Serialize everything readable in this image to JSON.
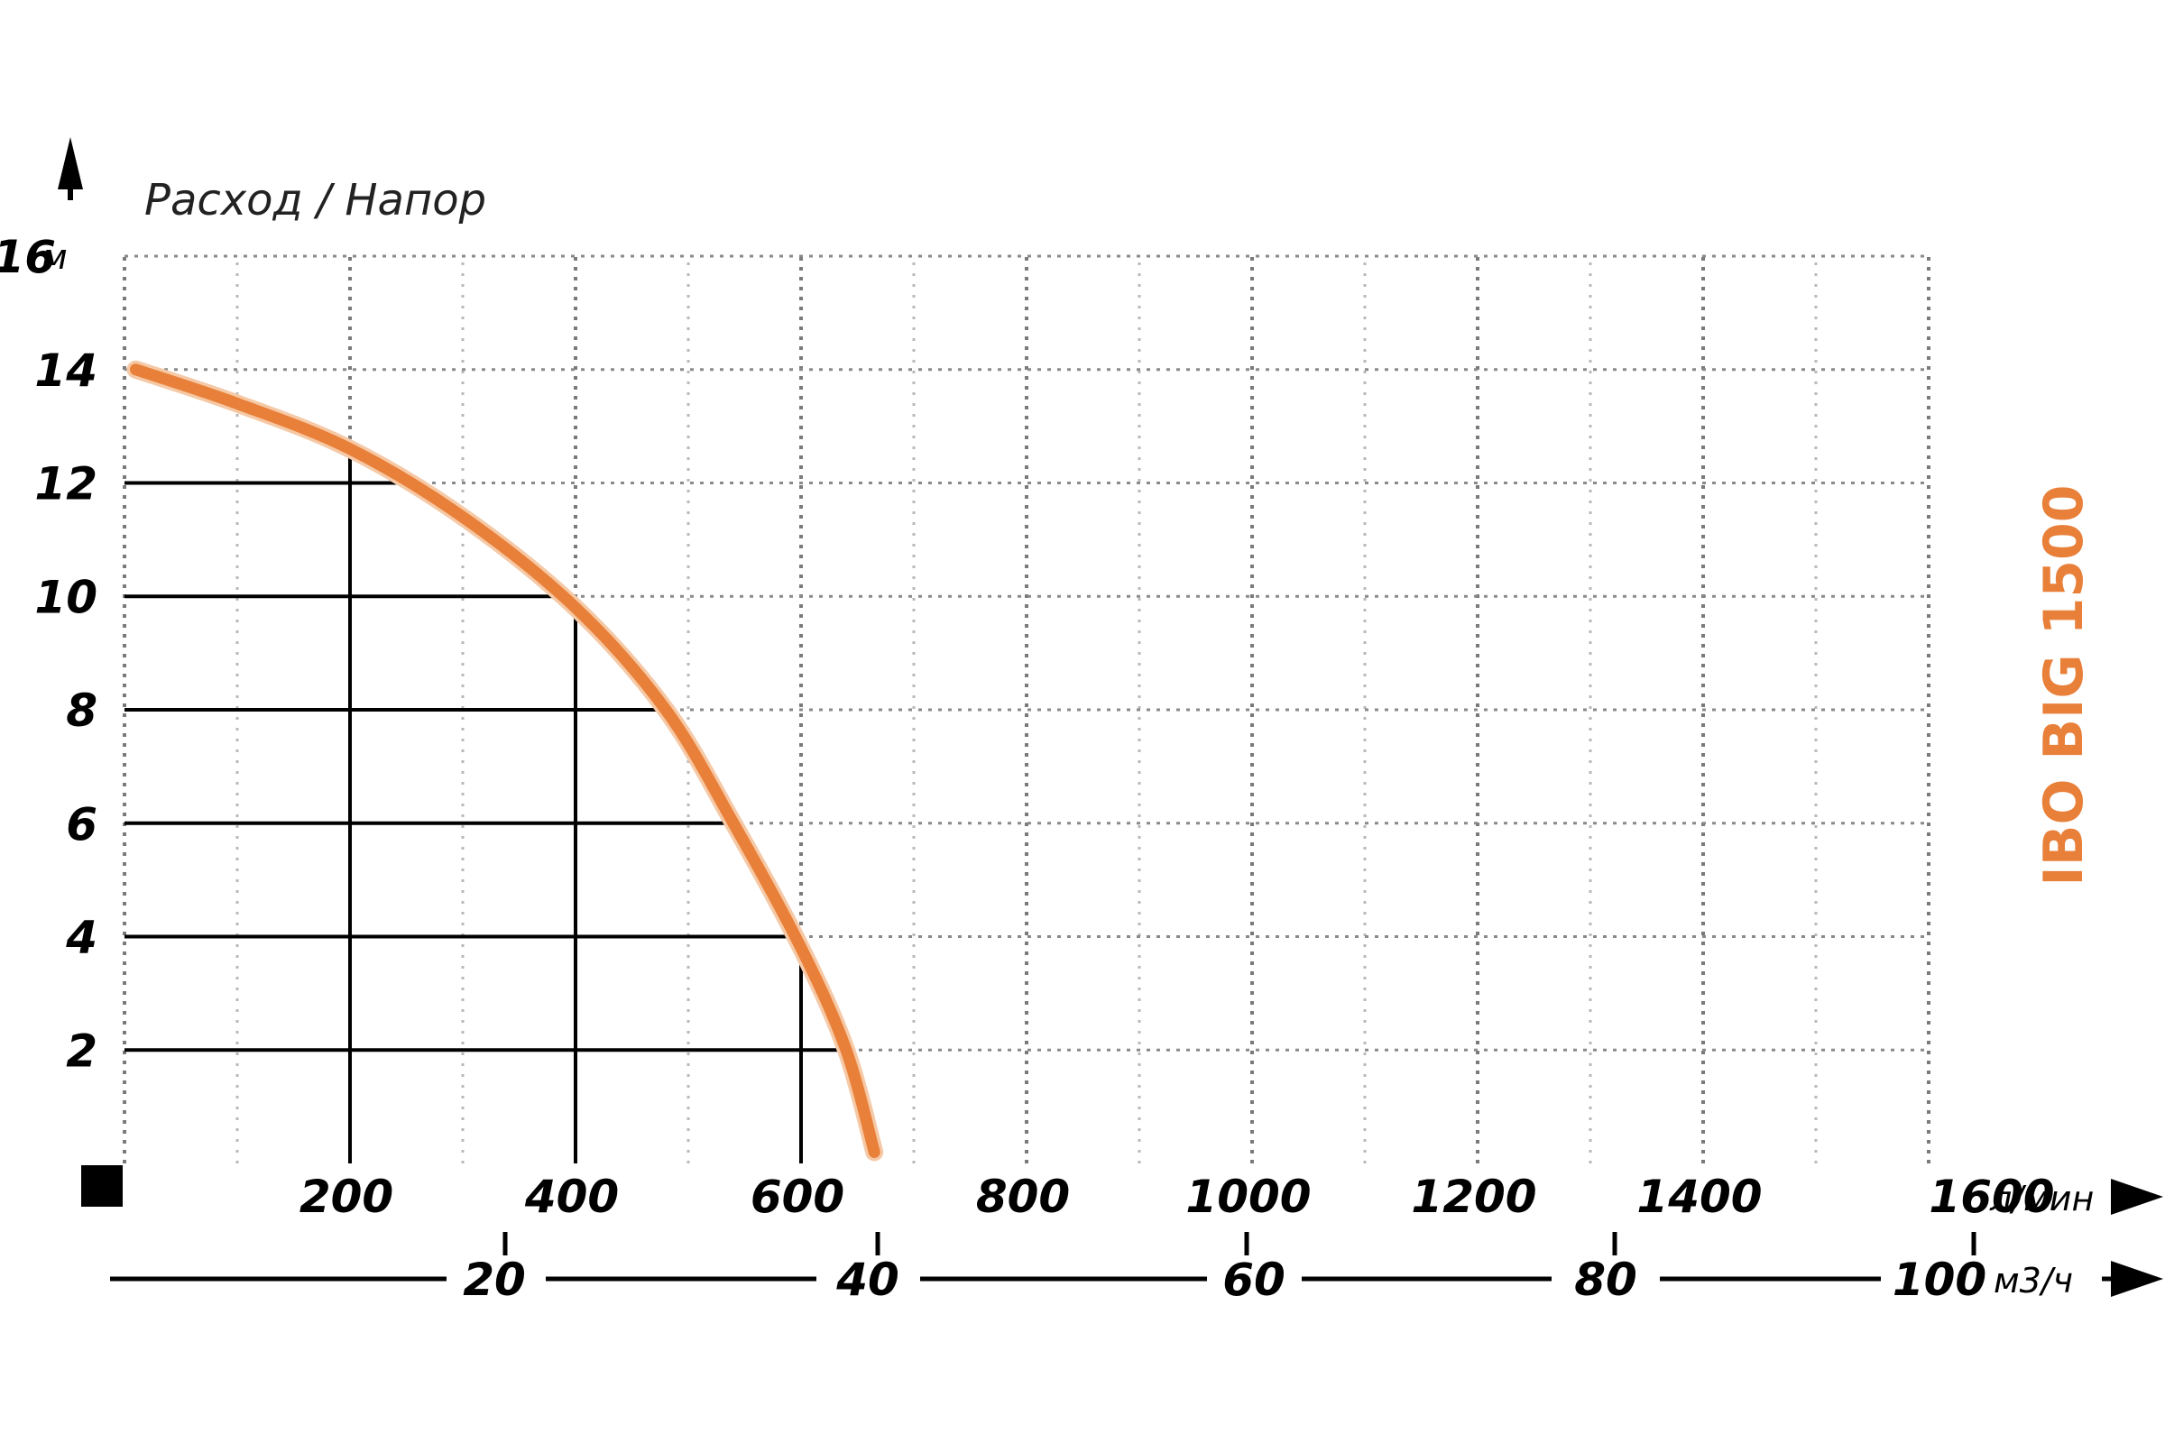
{
  "colors": {
    "curve": "#E8803A",
    "grid": "#9a9a9a",
    "text": "#000000"
  },
  "labels": {
    "axis_title": "Расход / Напор",
    "y_unit": "м",
    "x_unit": "л/мин",
    "x2_unit": "м3/ч",
    "model": "IBO BIG 1500"
  },
  "chart_data": {
    "type": "line",
    "title": "",
    "xlabel": "",
    "ylabel": "Расход / Напор",
    "xlim": [
      0,
      1600
    ],
    "ylim": [
      0,
      16
    ],
    "y_ticks": [
      2,
      4,
      6,
      8,
      10,
      12,
      14,
      16
    ],
    "x_ticks": [
      200,
      400,
      600,
      800,
      1000,
      1200,
      1400,
      1600
    ],
    "x2_ticks": [
      20,
      40,
      60,
      80,
      100
    ],
    "grid": true,
    "series": [
      {
        "name": "IBO BIG 1500",
        "x": [
          10,
          100,
          200,
          300,
          400,
          480,
          540,
          600,
          640,
          665
        ],
        "y": [
          14,
          13.4,
          12.6,
          11.4,
          9.8,
          8,
          6,
          3.8,
          2,
          0.2
        ]
      }
    ],
    "reference_points": [
      {
        "x": 200,
        "y": 12.6
      },
      {
        "x": 400,
        "y": 9.8
      },
      {
        "x": 600,
        "y": 3.8
      }
    ]
  }
}
